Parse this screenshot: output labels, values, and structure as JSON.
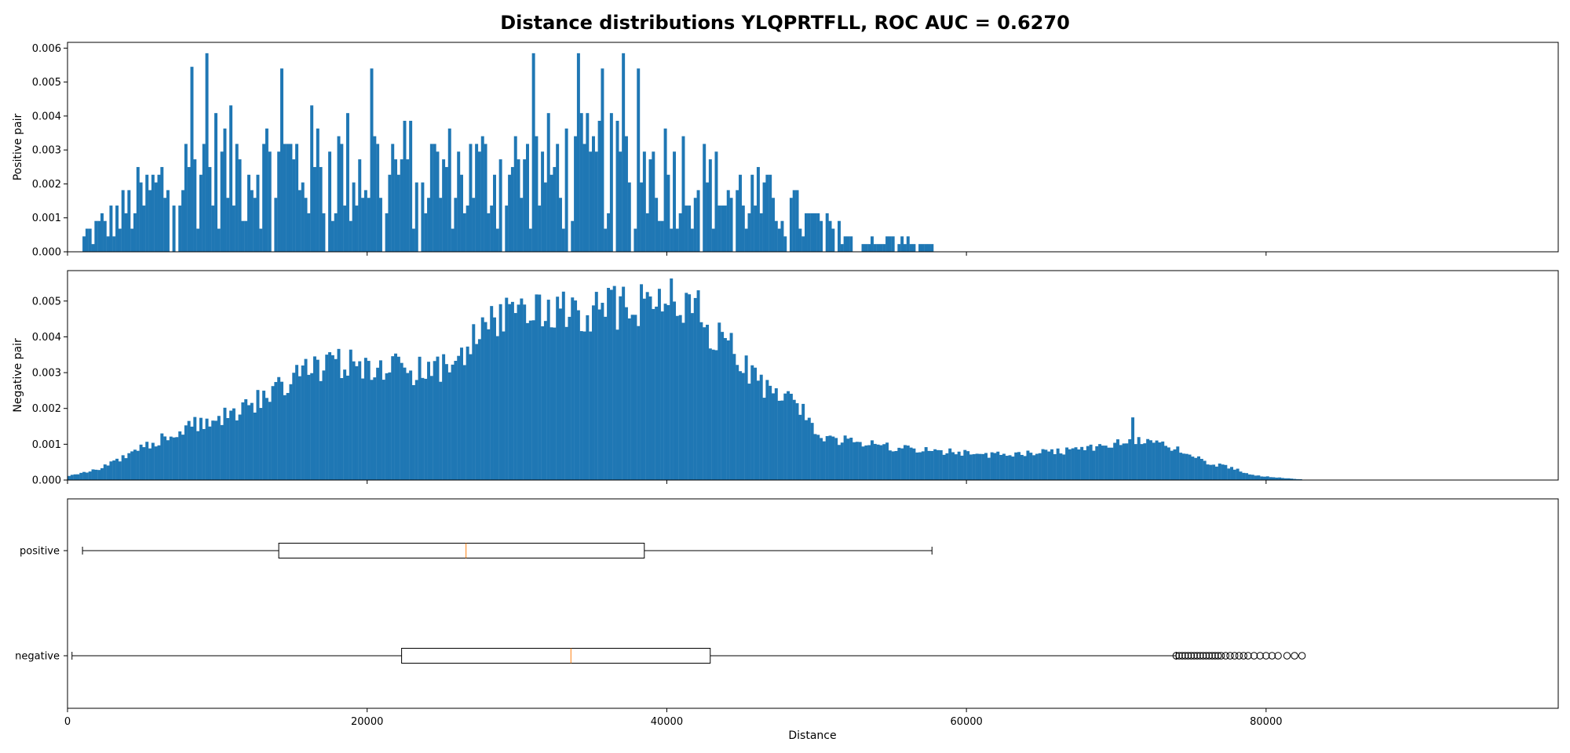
{
  "chart_data": {
    "type": "histogram+boxplot",
    "title": "Distance distributions YLQPRTFLL, ROC AUC = 0.6270",
    "xlabel": "Distance",
    "xlim": [
      0,
      99500
    ],
    "xticks": [
      0,
      20000,
      40000,
      60000,
      80000
    ],
    "xtick_labels": [
      "0",
      "20000",
      "40000",
      "60000",
      "80000"
    ],
    "bar_color": "#1f77b4",
    "median_color": "#ff7f0e",
    "bin_width": 200,
    "histograms": [
      {
        "name": "positive",
        "ylabel": "Positive pair",
        "ylim": [
          0,
          0.00617
        ],
        "yticks": [
          0,
          0.001,
          0.002,
          0.003,
          0.004,
          0.005,
          0.006
        ],
        "ytick_labels": [
          "0.000",
          "0.001",
          "0.002",
          "0.003",
          "0.004",
          "0.005",
          "0.006"
        ],
        "range": [
          1000,
          57700
        ],
        "envelope": {
          "x": [
            1000,
            3000,
            6000,
            9000,
            15000,
            20000,
            27000,
            33000,
            40000,
            45000,
            48000,
            50000,
            53000,
            55000,
            57700
          ],
          "y": [
            0.0004,
            0.0009,
            0.0018,
            0.0025,
            0.0025,
            0.0025,
            0.0022,
            0.0024,
            0.0024,
            0.0016,
            0.0012,
            0.0008,
            0.0004,
            0.0003,
            0.0002
          ]
        },
        "peaks": [
          [
            9200,
            0.00585
          ],
          [
            20100,
            0.00585
          ],
          [
            31000,
            0.00585
          ],
          [
            34000,
            0.00585
          ],
          [
            37000,
            0.00585
          ],
          [
            8200,
            0.00545
          ],
          [
            38000,
            0.0054
          ],
          [
            35500,
            0.0054
          ],
          [
            14200,
            0.0054
          ],
          [
            20200,
            0.0054
          ]
        ]
      },
      {
        "name": "negative",
        "ylabel": "Negative pair",
        "ylim": [
          0,
          0.00585
        ],
        "yticks": [
          0,
          0.001,
          0.002,
          0.003,
          0.004,
          0.005
        ],
        "ytick_labels": [
          "0.000",
          "0.001",
          "0.002",
          "0.003",
          "0.004",
          "0.005"
        ],
        "range": [
          0,
          82400
        ],
        "envelope": {
          "x": [
            0,
            2000,
            4000,
            6000,
            8000,
            10000,
            12000,
            14000,
            16000,
            18000,
            20000,
            22000,
            24000,
            26000,
            27000,
            28000,
            30000,
            32000,
            34000,
            36000,
            38000,
            40000,
            42000,
            44000,
            46000,
            48000,
            49500,
            50000,
            52000,
            55000,
            58000,
            62000,
            66000,
            68000,
            70000,
            72000,
            74000,
            76000,
            78000,
            79000,
            80000,
            81000,
            82000,
            82400
          ],
          "y": [
            0.0001,
            0.0003,
            0.0007,
            0.0011,
            0.0015,
            0.0017,
            0.002,
            0.0026,
            0.0031,
            0.0033,
            0.0032,
            0.0031,
            0.003,
            0.0032,
            0.0039,
            0.0043,
            0.0046,
            0.0047,
            0.0047,
            0.0048,
            0.0049,
            0.0052,
            0.0046,
            0.0038,
            0.0028,
            0.0022,
            0.0019,
            0.0012,
            0.0011,
            0.0009,
            0.0008,
            0.0007,
            0.0008,
            0.0009,
            0.001,
            0.0011,
            0.0009,
            0.0005,
            0.0003,
            0.00015,
            0.0001,
            6e-05,
            3e-05,
            2e-05
          ]
        },
        "peaks": [
          [
            40100,
            0.00563
          ],
          [
            37000,
            0.0054
          ],
          [
            33500,
            0.0051
          ],
          [
            42000,
            0.0053
          ],
          [
            30000,
            0.0049
          ],
          [
            71000,
            0.00175
          ]
        ]
      }
    ],
    "boxplots": [
      {
        "name": "positive",
        "label": "positive",
        "whisker_low": 1000,
        "q1": 14100,
        "median": 26600,
        "q3": 38500,
        "whisker_high": 57700,
        "fliers": []
      },
      {
        "name": "negative",
        "label": "negative",
        "whisker_low": 300,
        "q1": 22300,
        "median": 33600,
        "q3": 42900,
        "whisker_high": 74000,
        "fliers": [
          74000,
          74200,
          74400,
          74600,
          74800,
          75000,
          75200,
          75400,
          75600,
          75800,
          76000,
          76200,
          76400,
          76600,
          76800,
          77000,
          77300,
          77600,
          77900,
          78200,
          78500,
          78800,
          79200,
          79600,
          80000,
          80400,
          80800,
          81400,
          81900,
          82400
        ]
      }
    ]
  }
}
